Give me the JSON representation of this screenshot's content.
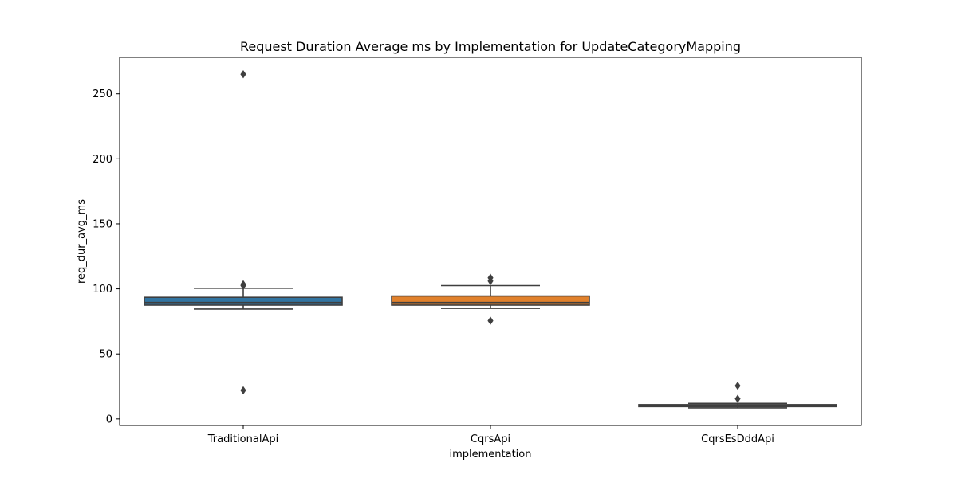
{
  "chart_data": {
    "type": "box",
    "title": "Request Duration Average ms by Implementation for UpdateCategoryMapping",
    "xlabel": "implementation",
    "ylabel": "req_dur_avg_ms",
    "ylim": [
      -5,
      278
    ],
    "yticks": [
      0,
      50,
      100,
      150,
      200,
      250
    ],
    "grid": false,
    "categories": [
      "TraditionalApi",
      "CqrsApi",
      "CqrsEsDddApi"
    ],
    "boxes": [
      {
        "category": "TraditionalApi",
        "color": "#3274a1",
        "whisker_low": 84.5,
        "q1": 87.5,
        "median": 89.5,
        "q3": 93.5,
        "whisker_high": 100.5,
        "outliers": [
          265,
          103.5,
          102.5,
          22
        ]
      },
      {
        "category": "CqrsApi",
        "color": "#e1812c",
        "whisker_low": 85,
        "q1": 87.5,
        "median": 89.5,
        "q3": 94.5,
        "whisker_high": 102.5,
        "outliers": [
          108.5,
          106,
          75.5
        ]
      },
      {
        "category": "CqrsEsDddApi",
        "color": "#3a923a",
        "whisker_low": 8.5,
        "q1": 9.5,
        "median": 10.3,
        "q3": 11,
        "whisker_high": 12,
        "outliers": [
          25.5,
          15.5
        ]
      }
    ]
  }
}
